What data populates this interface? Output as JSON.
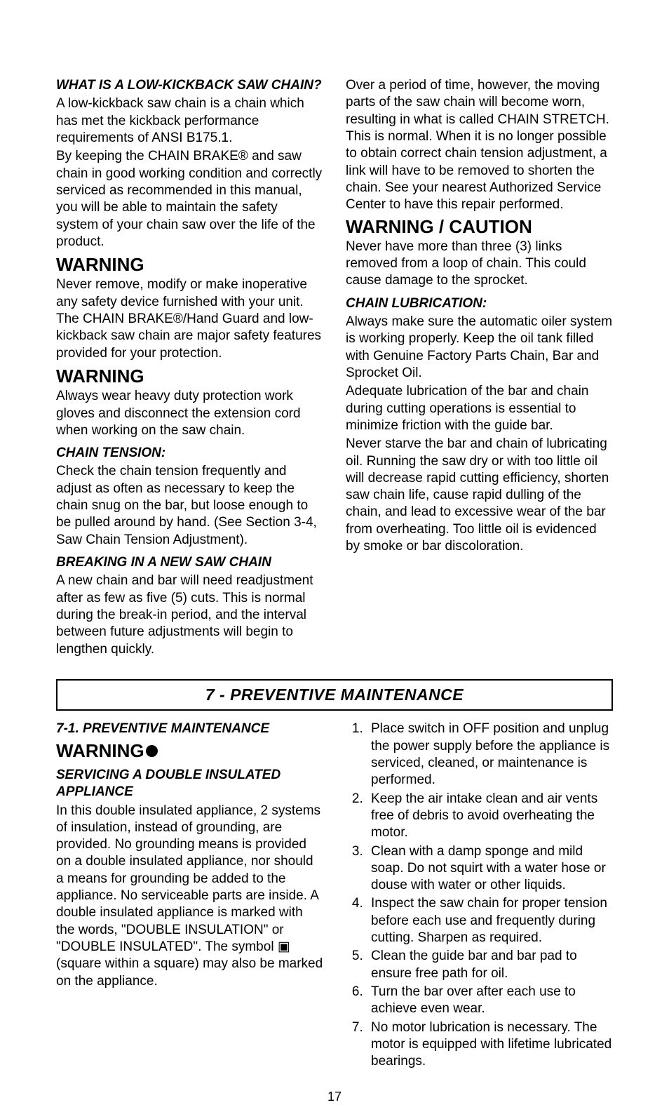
{
  "top": {
    "left": {
      "h_whatis": "WHAT IS A LOW-KICKBACK SAW CHAIN?",
      "p_whatis": "A low-kickback saw chain is a chain which has met the kickback performance requirements of ANSI B175.1.",
      "p_keep": "By keeping the CHAIN BRAKE® and saw chain in good working condition and correctly serviced as recommended in this manual, you will be able to maintain the safety system of your chain saw over the life of the product.",
      "h_warn1": "WARNING",
      "p_warn1": "Never remove, modify or make inoperative any safety device furnished with your unit. The CHAIN BRAKE®/Hand Guard and low-kickback saw chain are major safety features provided for your protection.",
      "h_warn2": "WARNING",
      "p_warn2": "Always wear heavy duty protection work gloves and disconnect the extension cord when working on the saw chain.",
      "h_tension": "CHAIN TENSION:",
      "p_tension": "Check the chain tension frequently and adjust as often as necessary to keep the chain snug on the bar, but loose enough to be pulled around by hand. (See Section 3-4, Saw Chain Tension Adjustment).",
      "h_breakin": "BREAKING IN A NEW SAW CHAIN",
      "p_breakin": "A new chain and bar will need readjustment after as few as five (5) cuts. This is normal during the break-in period, and the interval between future adjustments will begin to lengthen quickly."
    },
    "right": {
      "p_stretch": "Over a period of time, however, the moving parts of the saw chain will become worn, resulting in what is called CHAIN STRETCH. This is normal. When it is no longer possible to obtain correct chain tension adjustment, a link will have to be removed to shorten the chain. See your nearest Authorized Service Center to have this repair performed.",
      "h_warncaution": "WARNING / CAUTION",
      "p_warncaution": "Never have more than three (3) links removed from a loop of chain. This could cause damage to the sprocket.",
      "h_lub": "CHAIN LUBRICATION:",
      "p_lub1": "Always make sure the automatic oiler system is working properly. Keep the oil tank filled with Genuine Factory Parts Chain, Bar and Sprocket Oil.",
      "p_lub2": "Adequate lubrication of the bar and chain during cutting operations is essential to minimize friction with the guide bar.",
      "p_lub3": "Never starve the bar and chain of lubricating oil. Running the saw dry or with too little oil will decrease rapid cutting efficiency, shorten saw chain life, cause rapid dulling of the chain, and lead to excessive wear of the bar from overheating. Too little oil is evidenced by smoke or bar discoloration."
    }
  },
  "divider": "7 - PREVENTIVE MAINTENANCE",
  "sec71": {
    "left": {
      "h_71": "7-1.   PREVENTIVE MAINTENANCE",
      "h_warn": "WARNING",
      "h_serv": "SERVICING A DOUBLE INSULATED APPLIANCE",
      "p_serv": "In this double insulated appliance, 2 systems of insulation, instead of grounding, are provided. No grounding means is provided on a double insulated appliance, nor should a means for grounding be added to the appliance. No serviceable parts are inside. A double insulated appliance is marked with the words, \"DOUBLE INSULATION\" or \"DOUBLE INSULATED\". The symbol ▣ (square within a square) may also be marked on the appliance."
    },
    "right": {
      "items": [
        "Place switch in OFF position and unplug the power supply before the appliance is serviced, cleaned, or maintenance is performed.",
        "Keep the air intake clean and air vents free of debris to avoid overheating the motor.",
        "Clean with a damp sponge and mild soap. Do not squirt with a water hose or douse with water or other liquids.",
        "Inspect the saw chain for proper tension before each use and frequently during cutting. Sharpen as required.",
        "Clean the guide bar and bar pad to ensure free path for oil.",
        "Turn the bar over after each use to achieve even wear.",
        "No motor lubrication is necessary. The motor is equipped with lifetime lubricated bearings."
      ]
    }
  },
  "page_number": "17"
}
